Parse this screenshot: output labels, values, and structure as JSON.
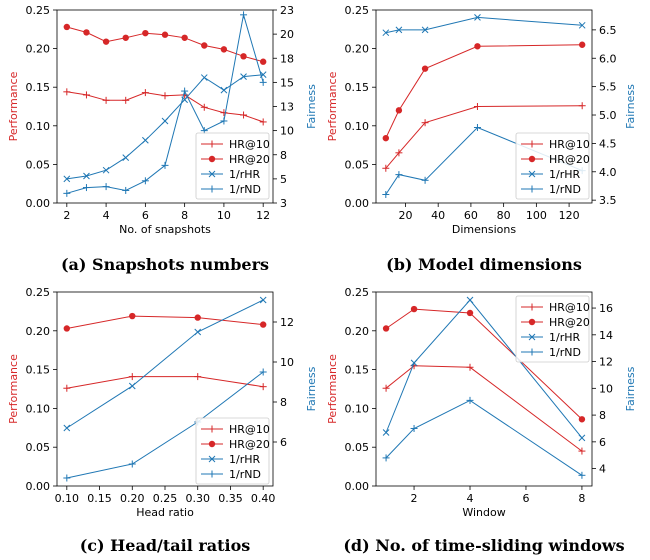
{
  "colors": {
    "red": "#d62728",
    "blue": "#1f77b4"
  },
  "chart_data": [
    {
      "type": "line",
      "caption": "(a) Snapshots numbers",
      "xlabel": "No. of snapshots",
      "ylabel_left": "Performance",
      "ylabel_right": "Fairness",
      "xlim": [
        1.5,
        12.5
      ],
      "xticks": [
        2,
        4,
        6,
        8,
        10,
        12
      ],
      "ylim_left": [
        0,
        0.25
      ],
      "yticks_left": [
        0.0,
        0.05,
        0.1,
        0.15,
        0.2,
        0.25
      ],
      "ylim_right": [
        2.5,
        22.5
      ],
      "yticks_right": [
        2.5,
        5.0,
        7.5,
        10.0,
        12.5,
        15.0,
        17.5,
        20.0,
        22.5
      ],
      "legend_position": "lower-right",
      "series": [
        {
          "name": "HR@10",
          "axis": "left",
          "color": "red",
          "marker": "plus",
          "x": [
            2,
            3,
            4,
            5,
            6,
            7,
            8,
            9,
            10,
            11,
            12
          ],
          "y": [
            0.144,
            0.14,
            0.133,
            0.133,
            0.143,
            0.139,
            0.14,
            0.124,
            0.117,
            0.114,
            0.105
          ]
        },
        {
          "name": "HR@20",
          "axis": "left",
          "color": "red",
          "marker": "dot",
          "x": [
            2,
            3,
            4,
            5,
            6,
            7,
            8,
            9,
            10,
            11,
            12
          ],
          "y": [
            0.228,
            0.221,
            0.209,
            0.214,
            0.22,
            0.218,
            0.214,
            0.204,
            0.199,
            0.19,
            0.183
          ]
        },
        {
          "name": "1/rHR",
          "axis": "right",
          "color": "blue",
          "marker": "x",
          "x": [
            2,
            3,
            4,
            5,
            6,
            7,
            8,
            9,
            10,
            11,
            12
          ],
          "y": [
            5.0,
            5.3,
            5.9,
            7.2,
            9.0,
            11.0,
            13.2,
            15.5,
            14.2,
            15.6,
            15.8
          ]
        },
        {
          "name": "1/rND",
          "axis": "right",
          "color": "blue",
          "marker": "plus",
          "x": [
            2,
            3,
            4,
            5,
            6,
            7,
            8,
            9,
            10,
            11,
            12
          ],
          "y": [
            3.5,
            4.1,
            4.2,
            3.8,
            4.8,
            6.4,
            14.1,
            10.0,
            11.0,
            22.0,
            15.0
          ]
        }
      ]
    },
    {
      "type": "line",
      "caption": "(b) Model dimensions",
      "xlabel": "Dimensions",
      "ylabel_left": "Performance",
      "ylabel_right": "Fairness",
      "xlim": [
        2,
        134
      ],
      "xticks": [
        20,
        40,
        60,
        80,
        100,
        120
      ],
      "ylim_left": [
        0,
        0.25
      ],
      "yticks_left": [
        0.0,
        0.05,
        0.1,
        0.15,
        0.2,
        0.25
      ],
      "ylim_right": [
        3.45,
        6.85
      ],
      "yticks_right": [
        3.5,
        4.0,
        4.5,
        5.0,
        5.5,
        6.0,
        6.5
      ],
      "legend_position": "lower-right",
      "series": [
        {
          "name": "HR@10",
          "axis": "left",
          "color": "red",
          "marker": "plus",
          "x": [
            8,
            16,
            32,
            64,
            128
          ],
          "y": [
            0.045,
            0.065,
            0.104,
            0.125,
            0.126
          ]
        },
        {
          "name": "HR@20",
          "axis": "left",
          "color": "red",
          "marker": "dot",
          "x": [
            8,
            16,
            32,
            64,
            128
          ],
          "y": [
            0.084,
            0.12,
            0.174,
            0.203,
            0.205
          ]
        },
        {
          "name": "1/rHR",
          "axis": "right",
          "color": "blue",
          "marker": "x",
          "x": [
            8,
            16,
            32,
            64,
            128
          ],
          "y": [
            6.45,
            6.5,
            6.5,
            6.72,
            6.58
          ]
        },
        {
          "name": "1/rND",
          "axis": "right",
          "color": "blue",
          "marker": "plus",
          "x": [
            8,
            16,
            32,
            64,
            128
          ],
          "y": [
            3.6,
            3.95,
            3.85,
            4.78,
            4.02
          ]
        }
      ]
    },
    {
      "type": "line",
      "caption": "(c) Head/tail ratios",
      "xlabel": "Head ratio",
      "ylabel_left": "Performance",
      "ylabel_right": "Fairness",
      "xlim": [
        0.085,
        0.415
      ],
      "xticks": [
        0.1,
        0.15,
        0.2,
        0.25,
        0.3,
        0.35,
        0.4
      ],
      "ylim_left": [
        0,
        0.25
      ],
      "yticks_left": [
        0.0,
        0.05,
        0.1,
        0.15,
        0.2,
        0.25
      ],
      "ylim_right": [
        3.8,
        13.5
      ],
      "yticks_right": [
        6,
        8,
        10,
        12
      ],
      "legend_position": "lower-right",
      "series": [
        {
          "name": "HR@10",
          "axis": "left",
          "color": "red",
          "marker": "plus",
          "x": [
            0.1,
            0.2,
            0.3,
            0.4
          ],
          "y": [
            0.126,
            0.141,
            0.141,
            0.128
          ]
        },
        {
          "name": "HR@20",
          "axis": "left",
          "color": "red",
          "marker": "dot",
          "x": [
            0.1,
            0.2,
            0.3,
            0.4
          ],
          "y": [
            0.203,
            0.219,
            0.217,
            0.208
          ]
        },
        {
          "name": "1/rHR",
          "axis": "right",
          "color": "blue",
          "marker": "x",
          "x": [
            0.1,
            0.2,
            0.3,
            0.4
          ],
          "y": [
            6.7,
            8.8,
            11.5,
            13.1
          ]
        },
        {
          "name": "1/rND",
          "axis": "right",
          "color": "blue",
          "marker": "plus",
          "x": [
            0.1,
            0.2,
            0.3,
            0.4
          ],
          "y": [
            4.2,
            4.9,
            7.0,
            9.5
          ]
        }
      ]
    },
    {
      "type": "line",
      "caption": "(d) No. of time-sliding windows",
      "xlabel": "Window",
      "ylabel_left": "Performance",
      "ylabel_right": "Fairness",
      "xlim": [
        0.64,
        8.36
      ],
      "xticks": [
        2,
        4,
        6,
        8
      ],
      "ylim_left": [
        0,
        0.25
      ],
      "yticks_left": [
        0.0,
        0.05,
        0.1,
        0.15,
        0.2,
        0.25
      ],
      "ylim_right": [
        2.7,
        17.2
      ],
      "yticks_right": [
        4,
        6,
        8,
        10,
        12,
        14,
        16
      ],
      "legend_position": "upper-right",
      "series": [
        {
          "name": "HR@10",
          "axis": "left",
          "color": "red",
          "marker": "plus",
          "x": [
            1,
            2,
            4,
            8
          ],
          "y": [
            0.126,
            0.155,
            0.153,
            0.045
          ]
        },
        {
          "name": "HR@20",
          "axis": "left",
          "color": "red",
          "marker": "dot",
          "x": [
            1,
            2,
            4,
            8
          ],
          "y": [
            0.203,
            0.228,
            0.223,
            0.086
          ]
        },
        {
          "name": "1/rHR",
          "axis": "right",
          "color": "blue",
          "marker": "x",
          "x": [
            1,
            2,
            4,
            8
          ],
          "y": [
            6.7,
            11.9,
            16.6,
            6.3
          ]
        },
        {
          "name": "1/rND",
          "axis": "right",
          "color": "blue",
          "marker": "plus",
          "x": [
            1,
            2,
            4,
            8
          ],
          "y": [
            4.8,
            7.0,
            9.1,
            3.5
          ]
        }
      ]
    }
  ]
}
